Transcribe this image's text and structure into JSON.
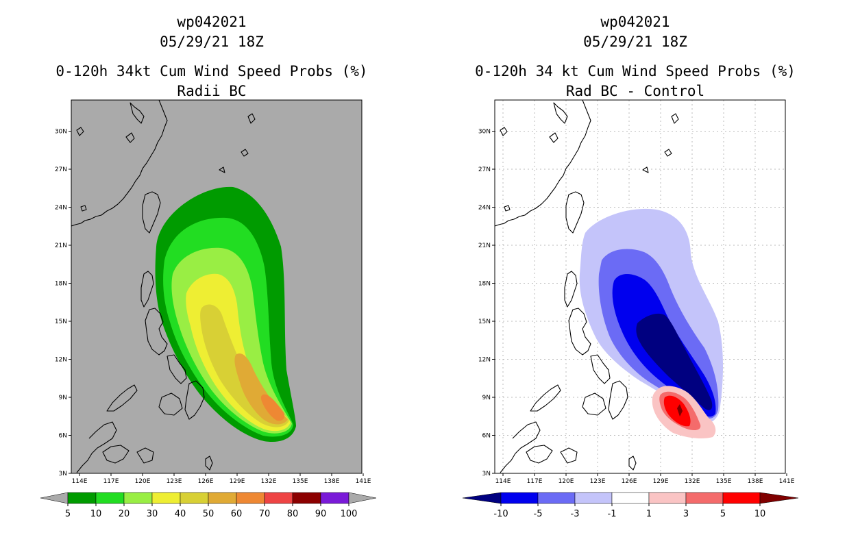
{
  "left": {
    "storm_id": "wp042021",
    "datetime": "05/29/21 18Z",
    "title": "0-120h 34kt Cum Wind Speed Probs (%)",
    "subtitle": "Radii BC",
    "colorbar": {
      "colors": [
        "#009b00",
        "#22dd22",
        "#99ee44",
        "#eeee33",
        "#d8d035",
        "#e0aa35",
        "#ee8833",
        "#ee4444",
        "#8c0000",
        "#7a1ad8"
      ],
      "under_color": "#aaaaaa",
      "over_color": "#aaaaaa",
      "labels": [
        "5",
        "10",
        "20",
        "30",
        "40",
        "50",
        "60",
        "70",
        "80",
        "90",
        "100"
      ]
    }
  },
  "right": {
    "storm_id": "wp042021",
    "datetime": "05/29/21 18Z",
    "title": "0-120h 34 kt Cum Wind Speed Probs (%)",
    "subtitle": "Rad BC - Control",
    "colorbar": {
      "colors": [
        "#0000ee",
        "#6b6bf5",
        "#c4c4fa",
        "#ffffff",
        "#fac4c4",
        "#f46b6b",
        "#ff0000"
      ],
      "under_color": "#000080",
      "over_color": "#800000",
      "labels": [
        "-10",
        "-5",
        "-3",
        "-1",
        "1",
        "3",
        "5",
        "10"
      ]
    }
  },
  "map": {
    "lon_labels": [
      "114E",
      "117E",
      "120E",
      "123E",
      "126E",
      "129E",
      "132E",
      "135E",
      "138E",
      "141E"
    ],
    "lat_labels": [
      "3N",
      "6N",
      "9N",
      "12N",
      "15N",
      "18N",
      "21N",
      "24N",
      "27N",
      "30N"
    ]
  },
  "colors": {
    "gray_background": "#aaaaaa",
    "grid": "#bbbbbb"
  }
}
